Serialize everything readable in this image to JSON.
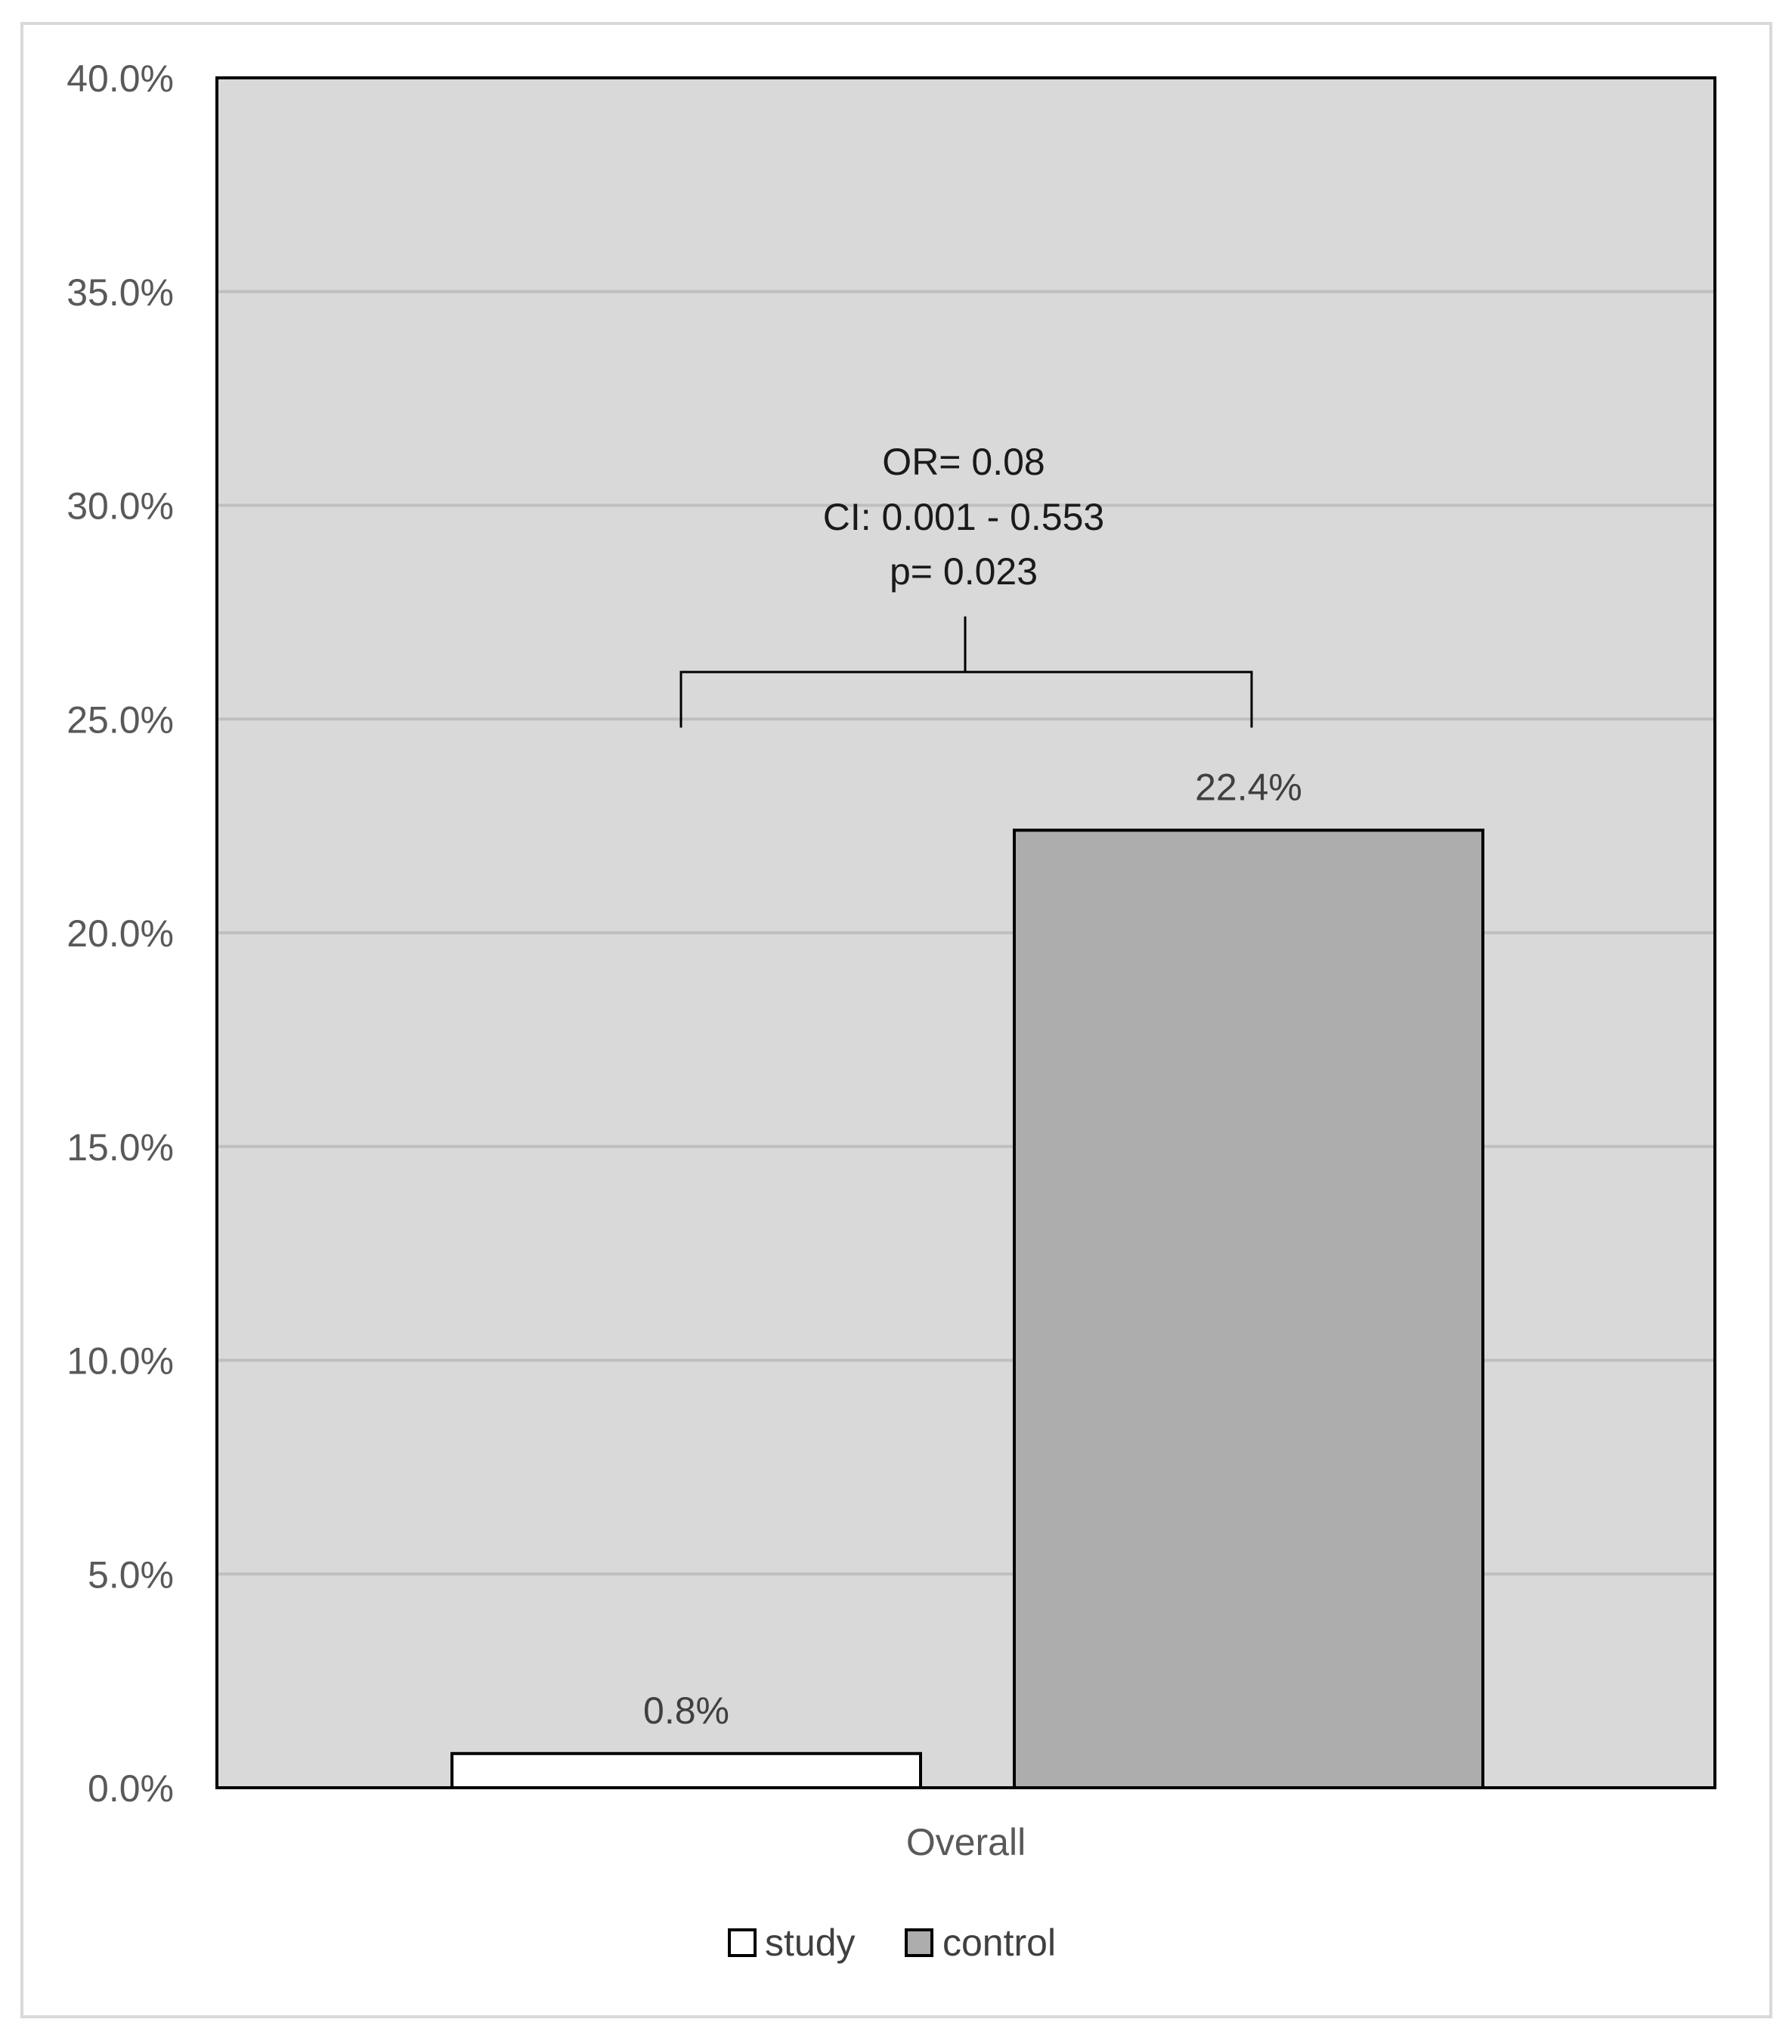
{
  "chart_data": {
    "type": "bar",
    "categories": [
      "Overall"
    ],
    "series": [
      {
        "name": "study",
        "values": [
          0.8
        ],
        "color": "#ffffff"
      },
      {
        "name": "control",
        "values": [
          22.4
        ],
        "color": "#adadad"
      }
    ],
    "data_labels": [
      "0.8%",
      "22.4%"
    ],
    "ylim": [
      0,
      40
    ],
    "yticks": [
      0,
      5,
      10,
      15,
      20,
      25,
      30,
      35,
      40
    ],
    "ytick_labels": [
      "0.0%",
      "5.0%",
      "10.0%",
      "15.0%",
      "20.0%",
      "25.0%",
      "30.0%",
      "35.0%",
      "40.0%"
    ],
    "grid": true,
    "plot_background": "#d9d9d9",
    "gridline_color": "#bfbfbf",
    "legend_position": "bottom",
    "annotation": {
      "lines": [
        "OR= 0.08",
        "CI: 0.001 - 0.553",
        "p= 0.023"
      ],
      "bracket_left_y": 24.8,
      "bracket_right_y": 24.8,
      "bracket_top_y": 26.1,
      "stem_top_y": 27.4
    },
    "title": "",
    "xlabel": "",
    "ylabel": ""
  }
}
